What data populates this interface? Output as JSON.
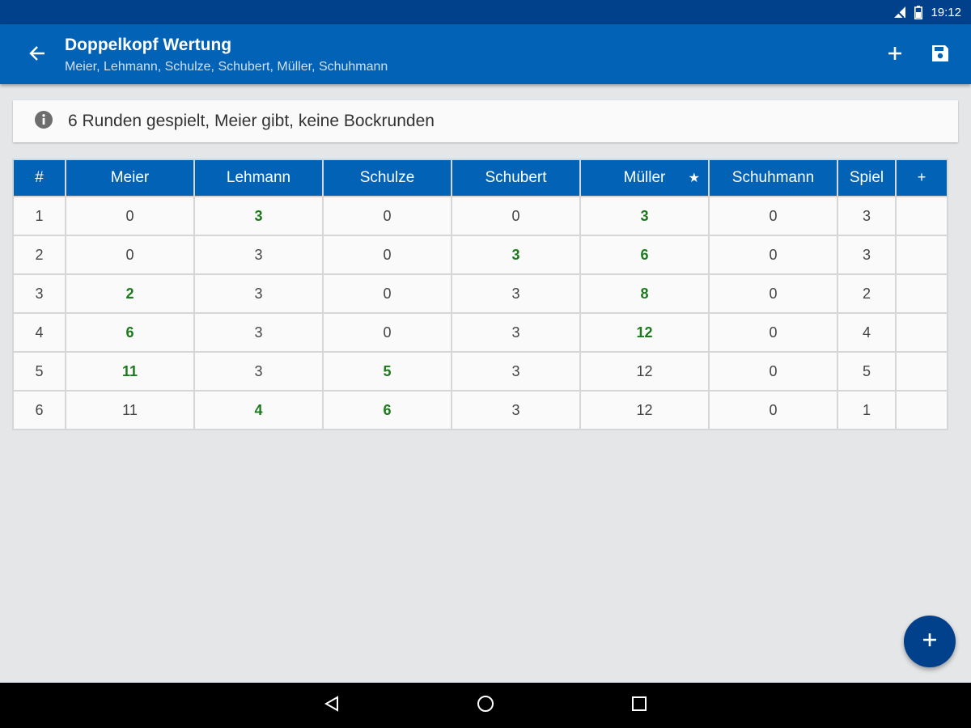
{
  "status_bar": {
    "time": "19:12",
    "icons": [
      "signal-icon",
      "battery-icon"
    ]
  },
  "app_bar": {
    "title": "Doppelkopf Wertung",
    "subtitle": "Meier, Lehmann, Schulze, Schubert, Müller, Schuhmann",
    "actions": [
      "add-icon",
      "save-icon"
    ]
  },
  "info": {
    "text": "6 Runden gespielt, Meier gibt, keine Bockrunden",
    "icon": "info-icon"
  },
  "table": {
    "headers": [
      "#",
      "Meier",
      "Lehmann",
      "Schulze",
      "Schubert",
      "Müller",
      "Schuhmann",
      "Spiel",
      "+"
    ],
    "dealer_marker": "★",
    "rows": [
      {
        "cells": [
          "1",
          "0",
          "3",
          "0",
          "0",
          "3",
          "0",
          "3",
          ""
        ],
        "highlight": [
          false,
          false,
          true,
          false,
          false,
          true,
          false,
          false,
          false
        ]
      },
      {
        "cells": [
          "2",
          "0",
          "3",
          "0",
          "3",
          "6",
          "0",
          "3",
          ""
        ],
        "highlight": [
          false,
          false,
          false,
          false,
          true,
          true,
          false,
          false,
          false
        ]
      },
      {
        "cells": [
          "3",
          "2",
          "3",
          "0",
          "3",
          "8",
          "0",
          "2",
          ""
        ],
        "highlight": [
          false,
          true,
          false,
          false,
          false,
          true,
          false,
          false,
          false
        ]
      },
      {
        "cells": [
          "4",
          "6",
          "3",
          "0",
          "3",
          "12",
          "0",
          "4",
          ""
        ],
        "highlight": [
          false,
          true,
          false,
          false,
          false,
          true,
          false,
          false,
          false
        ]
      },
      {
        "cells": [
          "5",
          "11",
          "3",
          "5",
          "3",
          "12",
          "0",
          "5",
          ""
        ],
        "highlight": [
          false,
          true,
          false,
          true,
          false,
          false,
          false,
          false,
          false
        ]
      },
      {
        "cells": [
          "6",
          "11",
          "4",
          "6",
          "3",
          "12",
          "0",
          "1",
          ""
        ],
        "highlight": [
          false,
          false,
          true,
          true,
          false,
          false,
          false,
          false,
          false
        ]
      }
    ]
  },
  "fab": {
    "icon": "add-icon"
  },
  "nav_bar": {
    "buttons": [
      "back-triangle-icon",
      "home-circle-icon",
      "recents-square-icon"
    ]
  },
  "colors": {
    "primary": "#0262b6",
    "primary_dark": "#01408b",
    "highlight_green": "#1b7a1b",
    "background": "#e5e6e8"
  }
}
